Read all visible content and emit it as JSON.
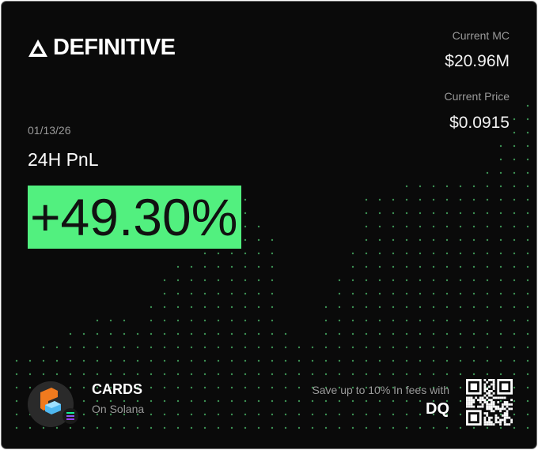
{
  "brand": {
    "name": "DEFINITIVE",
    "logo_icon": "triangle-icon"
  },
  "stats": [
    {
      "label": "Current MC",
      "value": "$20.96M"
    },
    {
      "label": "Current Price",
      "value": "$0.0915"
    }
  ],
  "date": "01/13/26",
  "pnl": {
    "label": "24H PnL",
    "value": "+49.30%"
  },
  "token": {
    "name": "CARDS",
    "chain": "On Solana",
    "icon": "cards-token-icon",
    "chain_icon": "solana-icon"
  },
  "promo": {
    "text": "Save up to 10% In fees with",
    "code": "DQ",
    "qr_icon": "qr-code-icon"
  },
  "colors": {
    "accent": "#52f07f",
    "background": "#0a0a0a",
    "dots": "#4fbf6e"
  }
}
